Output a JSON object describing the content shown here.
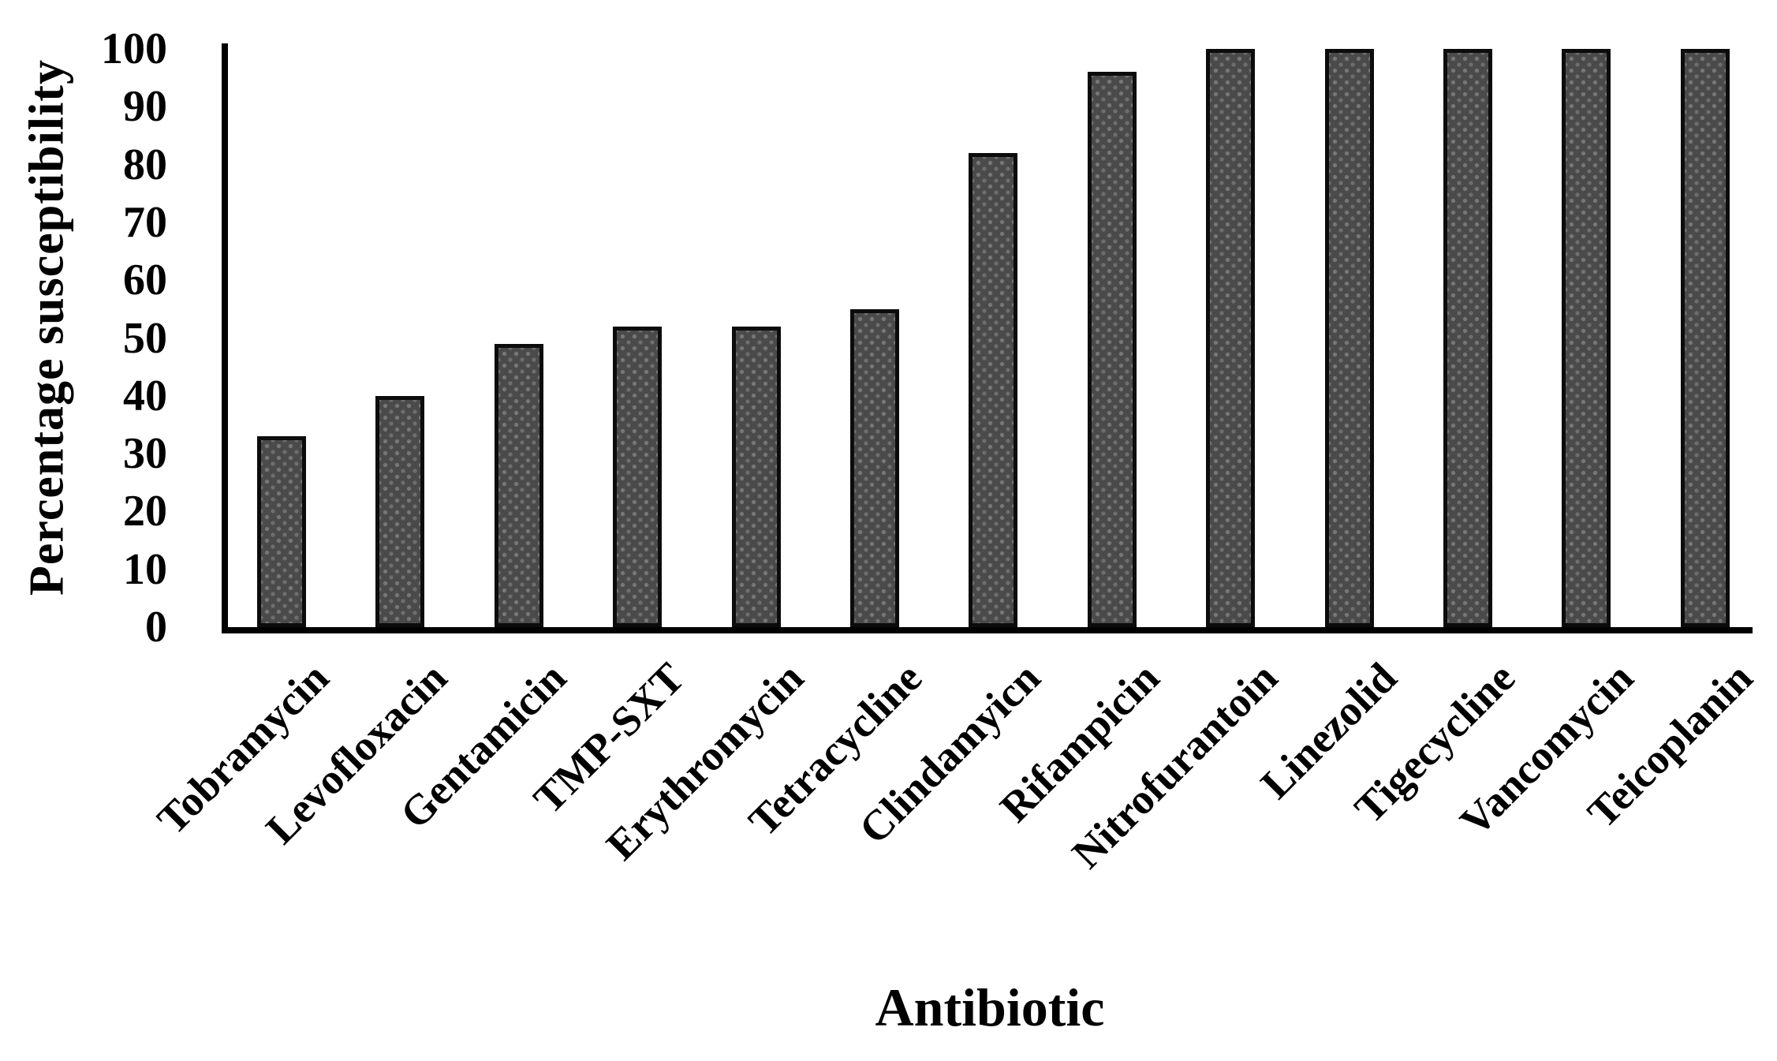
{
  "figure": {
    "background": "#ffffff",
    "axis_color": "#000000",
    "bar_fill": "#4a4a4a",
    "bar_dot": "#777777",
    "bar_border": "#0c0c0c"
  },
  "chart_data": {
    "type": "bar",
    "title": "",
    "xlabel": "Antibiotic",
    "ylabel": "Percentage susceptibility",
    "categories": [
      "Tobramycin",
      "Levofloxacin",
      "Gentamicin",
      "TMP-SXT",
      "Erythromycin",
      "Tetracycline",
      "Clindamyicn",
      "Rifampicin",
      "Nitrofurantoin",
      "Linezolid",
      "Tigecycline",
      "Vancomycin",
      "Teicoplanin"
    ],
    "values": [
      33,
      40,
      49,
      52,
      52,
      55,
      82,
      96,
      100,
      100,
      100,
      100,
      100
    ],
    "ylim": [
      0,
      100
    ],
    "yticks": [
      0,
      10,
      20,
      30,
      40,
      50,
      60,
      70,
      80,
      90,
      100
    ],
    "grid": false,
    "legend": null
  }
}
